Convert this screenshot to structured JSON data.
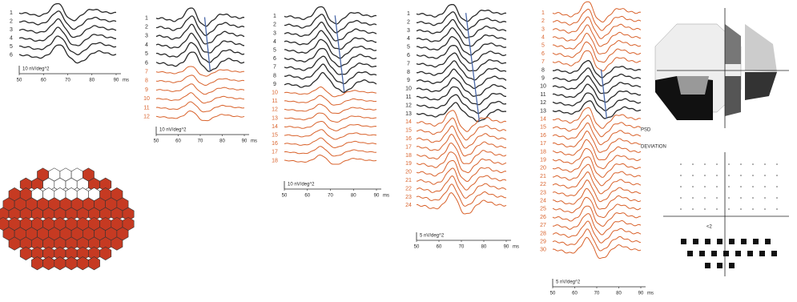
{
  "colors": {
    "dark": "#2a2a2a",
    "light": "#d9622b",
    "marker": "#4a68a8",
    "hex_red": "#c63a22"
  },
  "panels": [
    {
      "rows": [
        "1",
        "2",
        "3",
        "4",
        "5",
        "6"
      ],
      "dark": [
        1,
        6
      ],
      "scale": "10 nV/deg^2",
      "xlim": [
        50,
        90
      ],
      "xticks": [
        50,
        60,
        70,
        80,
        90
      ],
      "xunit": "ms",
      "blue_line": false
    },
    {
      "rows": [
        "1",
        "2",
        "3",
        "4",
        "5",
        "6",
        "7",
        "8",
        "9",
        "10",
        "11",
        "12"
      ],
      "dark": [
        1,
        6
      ],
      "scale": "10 nV/deg^2",
      "xlim": [
        50,
        90
      ],
      "xticks": [
        50,
        60,
        70,
        80,
        90
      ],
      "xunit": "ms",
      "blue_line": true
    },
    {
      "rows": [
        "1",
        "2",
        "3",
        "4",
        "5",
        "6",
        "7",
        "8",
        "9",
        "10",
        "11",
        "12",
        "13",
        "14",
        "15",
        "16",
        "17",
        "18"
      ],
      "dark": [
        1,
        9
      ],
      "scale": "10 nV/deg^2",
      "xlim": [
        50,
        90
      ],
      "xticks": [
        50,
        60,
        70,
        80,
        90
      ],
      "xunit": "ms",
      "blue_line": true
    },
    {
      "rows": [
        "1",
        "2",
        "3",
        "4",
        "5",
        "6",
        "7",
        "8",
        "9",
        "10",
        "11",
        "12",
        "13",
        "14",
        "15",
        "16",
        "17",
        "18",
        "19",
        "20",
        "21",
        "22",
        "23",
        "24"
      ],
      "dark": [
        1,
        13
      ],
      "scale": "5 nV/deg^2",
      "xlim": [
        50,
        90
      ],
      "xticks": [
        50,
        60,
        70,
        80,
        90
      ],
      "xunit": "ms",
      "blue_line": true
    },
    {
      "rows": [
        "1",
        "2",
        "3",
        "4",
        "5",
        "6",
        "7",
        "8",
        "9",
        "10",
        "11",
        "12",
        "13",
        "14",
        "15",
        "16",
        "17",
        "18",
        "19",
        "20",
        "21",
        "22",
        "23",
        "24",
        "25",
        "26",
        "27",
        "28",
        "29",
        "30"
      ],
      "dark": [
        8,
        13
      ],
      "scale": "5 nV/deg^2",
      "xlim": [
        50,
        90
      ],
      "xticks": [
        50,
        60,
        70,
        80,
        90
      ],
      "xunit": "ms",
      "blue_line": true
    }
  ],
  "field": {
    "psd": "PSD",
    "deviation": "DEVIATION",
    "marker": "<2"
  }
}
